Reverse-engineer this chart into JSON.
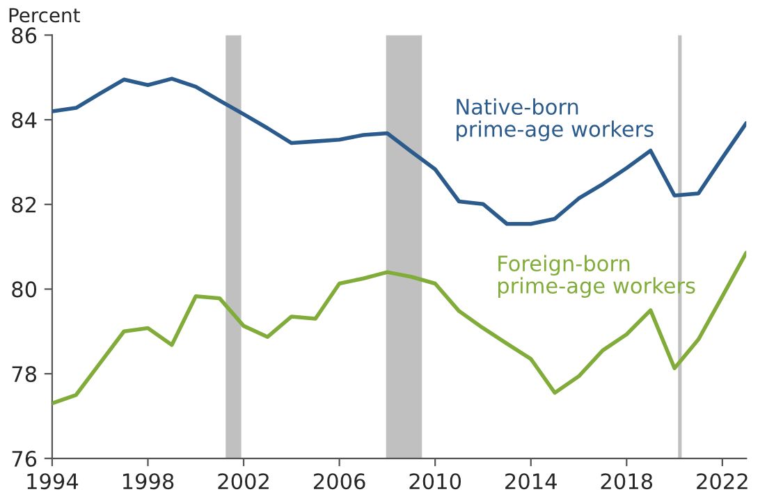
{
  "chart_data": {
    "type": "line",
    "ylabel": "Percent",
    "x": [
      1994,
      1995,
      1996,
      1997,
      1998,
      1999,
      2000,
      2001,
      2002,
      2003,
      2004,
      2005,
      2006,
      2007,
      2008,
      2009,
      2010,
      2011,
      2012,
      2013,
      2014,
      2015,
      2016,
      2017,
      2018,
      2019,
      2020,
      2021,
      2022,
      2023
    ],
    "series": [
      {
        "name": "Native-born\nprime-age workers",
        "color": "#2b5b8c",
        "values": [
          84.2,
          84.28,
          84.62,
          84.95,
          84.82,
          84.97,
          84.78,
          84.45,
          84.13,
          83.8,
          83.45,
          83.49,
          83.53,
          83.64,
          83.68,
          83.25,
          82.83,
          82.07,
          82.01,
          81.54,
          81.54,
          81.66,
          82.14,
          82.48,
          82.86,
          83.27,
          82.21,
          82.26,
          83.1,
          83.92
        ]
      },
      {
        "name": "Foreign-born\nprime-age workers",
        "color": "#82ac3a",
        "values": [
          77.3,
          77.5,
          78.25,
          79.0,
          79.08,
          78.68,
          79.83,
          79.78,
          79.13,
          78.87,
          79.35,
          79.3,
          80.13,
          80.25,
          80.4,
          80.29,
          80.13,
          79.48,
          79.08,
          78.71,
          78.35,
          77.55,
          77.94,
          78.55,
          78.93,
          79.5,
          78.13,
          78.81,
          79.83,
          80.86
        ]
      }
    ],
    "bands": [
      {
        "axis": "x",
        "from": 2001.25,
        "to": 2001.9,
        "color": "#c0c0c0"
      },
      {
        "axis": "x",
        "from": 2007.95,
        "to": 2009.45,
        "color": "#c0c0c0"
      },
      {
        "axis": "x",
        "from": 2020.15,
        "to": 2020.3,
        "color": "#c0c0c0"
      }
    ],
    "xlim": [
      1994,
      2023
    ],
    "xticks": [
      1994,
      1998,
      2002,
      2006,
      2010,
      2014,
      2018,
      2022
    ],
    "ylim": [
      76,
      86
    ],
    "yticks": [
      76,
      78,
      80,
      82,
      84,
      86
    ],
    "grid": false,
    "legend": false
  }
}
